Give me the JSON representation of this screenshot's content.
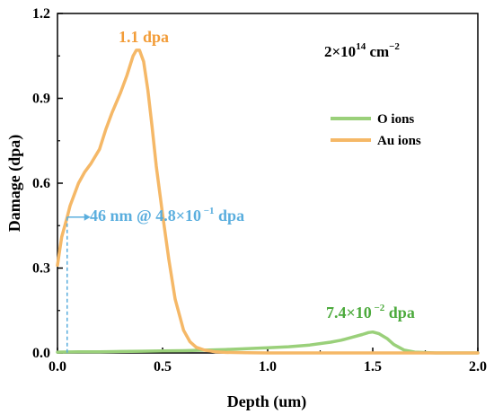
{
  "chart_data": {
    "type": "line",
    "xlabel": "Depth (um)",
    "ylabel": "Damage (dpa)",
    "xlim": [
      0,
      2.0
    ],
    "ylim": [
      0,
      1.2
    ],
    "x_ticks": [
      "0.0",
      "0.5",
      "1.0",
      "1.5",
      "2.0"
    ],
    "y_ticks": [
      "0.0",
      "0.3",
      "0.6",
      "0.9",
      "1.2"
    ],
    "grid": false,
    "legend_position": "upper-right",
    "fluence_label": {
      "base": "2×10",
      "exp": "14",
      "unit": " cm",
      "unit_exp": "−2"
    },
    "series": [
      {
        "name": "O ions",
        "color": "#9ad07a",
        "x": [
          0.0,
          0.1,
          0.2,
          0.3,
          0.4,
          0.5,
          0.6,
          0.7,
          0.8,
          0.9,
          1.0,
          1.1,
          1.2,
          1.3,
          1.35,
          1.4,
          1.45,
          1.48,
          1.5,
          1.53,
          1.57,
          1.6,
          1.65,
          1.7,
          1.8,
          1.9,
          2.0
        ],
        "y": [
          0.003,
          0.004,
          0.004,
          0.005,
          0.006,
          0.007,
          0.008,
          0.01,
          0.012,
          0.015,
          0.018,
          0.022,
          0.028,
          0.038,
          0.045,
          0.055,
          0.065,
          0.072,
          0.074,
          0.068,
          0.05,
          0.03,
          0.01,
          0.003,
          0.0,
          0.0,
          0.0
        ]
      },
      {
        "name": "Au ions",
        "color": "#f5b867",
        "x": [
          0.0,
          0.01,
          0.02,
          0.046,
          0.06,
          0.08,
          0.1,
          0.13,
          0.16,
          0.2,
          0.23,
          0.26,
          0.3,
          0.33,
          0.36,
          0.375,
          0.39,
          0.41,
          0.43,
          0.45,
          0.47,
          0.5,
          0.53,
          0.56,
          0.6,
          0.63,
          0.66,
          0.7,
          0.75,
          0.8,
          0.9,
          1.0,
          1.2,
          1.5,
          1.8,
          2.0
        ],
        "y": [
          0.31,
          0.36,
          0.41,
          0.48,
          0.52,
          0.56,
          0.6,
          0.64,
          0.67,
          0.72,
          0.79,
          0.85,
          0.92,
          0.98,
          1.05,
          1.07,
          1.07,
          1.03,
          0.93,
          0.8,
          0.66,
          0.49,
          0.33,
          0.19,
          0.08,
          0.04,
          0.02,
          0.01,
          0.004,
          0.002,
          0.001,
          0.0,
          0.0,
          0.0,
          0.0,
          0.0
        ]
      }
    ],
    "annotations": {
      "au_peak": {
        "text": "1.1 dpa",
        "x": 0.38,
        "y": 1.07,
        "color": "#f29c38"
      },
      "o_peak": {
        "text_base": "7.4×10",
        "text_exp": " −2",
        "text_unit": " dpa",
        "x": 1.45,
        "y": 0.074,
        "color": "#4caa3c"
      },
      "surface": {
        "text_base": "46 nm @ 4.8×10",
        "text_exp": " −1",
        "text_unit": " dpa",
        "x": 0.046,
        "y": 0.48,
        "color": "#5aaede"
      }
    }
  }
}
